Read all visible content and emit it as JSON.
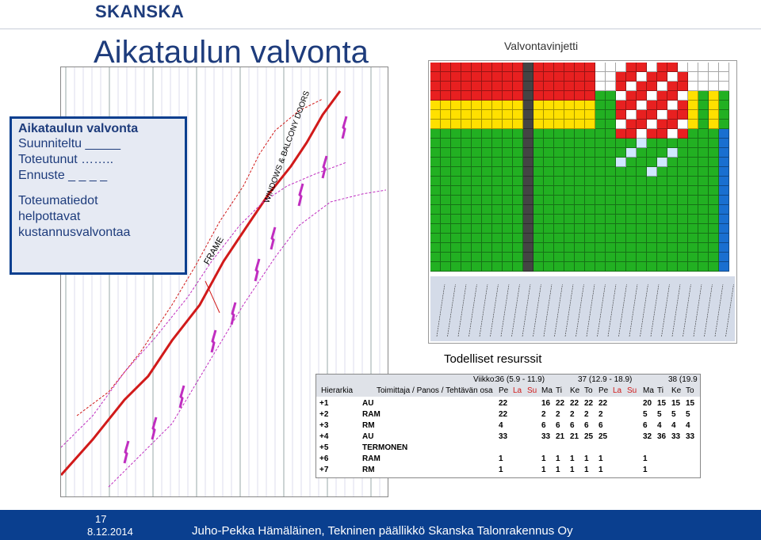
{
  "header": {
    "logo_text": "SKANSKA",
    "title": "Aikataulun valvonta"
  },
  "legend_box": {
    "heading": "Aikataulun valvonta",
    "planned": "Suunniteltu _____",
    "actual": "Toteutunut ……..",
    "forecast": "Ennuste _ _ _ _",
    "note_line1": "Toteumatiedot",
    "note_line2": "helpottavat",
    "note_line3": "kustannusvalvontaa"
  },
  "chart_annotations": {
    "frame": "FRAME",
    "windows": "WINDOWS & BALCONY DOORS"
  },
  "labels": {
    "monitoring_injection": "Valvontavinjetti",
    "actual_resources": "Todelliset resurssit"
  },
  "resource_table": {
    "week_label": "Viikko:",
    "weeks": [
      "36 (5.9 - 11.9)",
      "37 (12.9 - 18.9)",
      "38 (19.9 -"
    ],
    "col_hierarchy": "Hierarkia",
    "col_supplier": "Toimittaja / Panos / Tehtävän osa",
    "days": [
      "Pe",
      "La",
      "Su",
      "Ma",
      "Ti",
      "Ke",
      "To",
      "Pe",
      "La",
      "Su",
      "Ma",
      "Ti",
      "Ke",
      "To"
    ],
    "rows": [
      {
        "h": "+1",
        "s": "AU",
        "v": [
          "22",
          "",
          "",
          "16",
          "22",
          "22",
          "22",
          "22",
          "",
          "",
          "20",
          "15",
          "15",
          "15"
        ]
      },
      {
        "h": "+2",
        "s": "RAM",
        "v": [
          "22",
          "",
          "",
          "2",
          "2",
          "2",
          "2",
          "2",
          "",
          "",
          "5",
          "5",
          "5",
          "5"
        ]
      },
      {
        "h": "+3",
        "s": "RM",
        "v": [
          "4",
          "",
          "",
          "6",
          "6",
          "6",
          "6",
          "6",
          "",
          "",
          "6",
          "4",
          "4",
          "4"
        ]
      },
      {
        "h": "+4",
        "s": "AU",
        "v": [
          "33",
          "",
          "",
          "33",
          "21",
          "21",
          "25",
          "25",
          "",
          "",
          "32",
          "36",
          "33",
          "33"
        ]
      },
      {
        "h": "+5",
        "s": "TERMONEN",
        "v": [
          "",
          "",
          "",
          "",
          "",
          "",
          "",
          "",
          "",
          "",
          "",
          "",
          "",
          ""
        ]
      },
      {
        "h": "+6",
        "s": "RAM",
        "v": [
          "1",
          "",
          "",
          "1",
          "1",
          "1",
          "1",
          "1",
          "",
          "",
          "1",
          "",
          "",
          ""
        ]
      },
      {
        "h": "+7",
        "s": "RM",
        "v": [
          "1",
          "",
          "",
          "1",
          "1",
          "1",
          "1",
          "1",
          "",
          "",
          "1",
          "",
          "",
          ""
        ]
      }
    ]
  },
  "footer": {
    "page_number": "17",
    "date": "8.12.2014",
    "author": "Juho-Pekka Hämäläinen, Tekninen päällikkö Skanska Talonrakennus Oy"
  },
  "colors": {
    "brand_blue": "#1e3c7c",
    "footer_blue": "#0a3f8f",
    "plan_red": "#d11a1a",
    "actual_magenta": "#c02ec0"
  }
}
